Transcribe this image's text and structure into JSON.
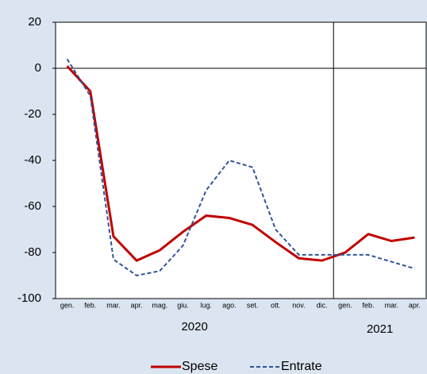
{
  "chart_data": {
    "type": "line",
    "categories": [
      "gen.",
      "feb.",
      "mar.",
      "apr.",
      "mag.",
      "giu.",
      "lug.",
      "ago.",
      "set.",
      "ott.",
      "nov.",
      "dic.",
      "gen.",
      "feb.",
      "mar.",
      "apr."
    ],
    "years": [
      "2020",
      "2021"
    ],
    "series": [
      {
        "name": "Spese",
        "color": "#c00000",
        "dash": false,
        "values": [
          1,
          -10,
          -73,
          -83.5,
          -79,
          -71,
          -64,
          -65,
          -68,
          -75.5,
          -82.5,
          -83.5,
          -80,
          -72,
          -75,
          -73.5
        ]
      },
      {
        "name": "Entrate",
        "color": "#2f5597",
        "dash": true,
        "values": [
          4,
          -12,
          -83,
          -90,
          -88,
          -77,
          -53,
          -40,
          -43,
          -70,
          -81,
          -81,
          -81,
          -81,
          -84,
          -87
        ]
      }
    ],
    "ylim": [
      -100,
      20
    ],
    "yticks": [
      -100,
      -80,
      -60,
      -40,
      -20,
      0,
      20
    ],
    "grid": false,
    "legend": "bottom"
  }
}
